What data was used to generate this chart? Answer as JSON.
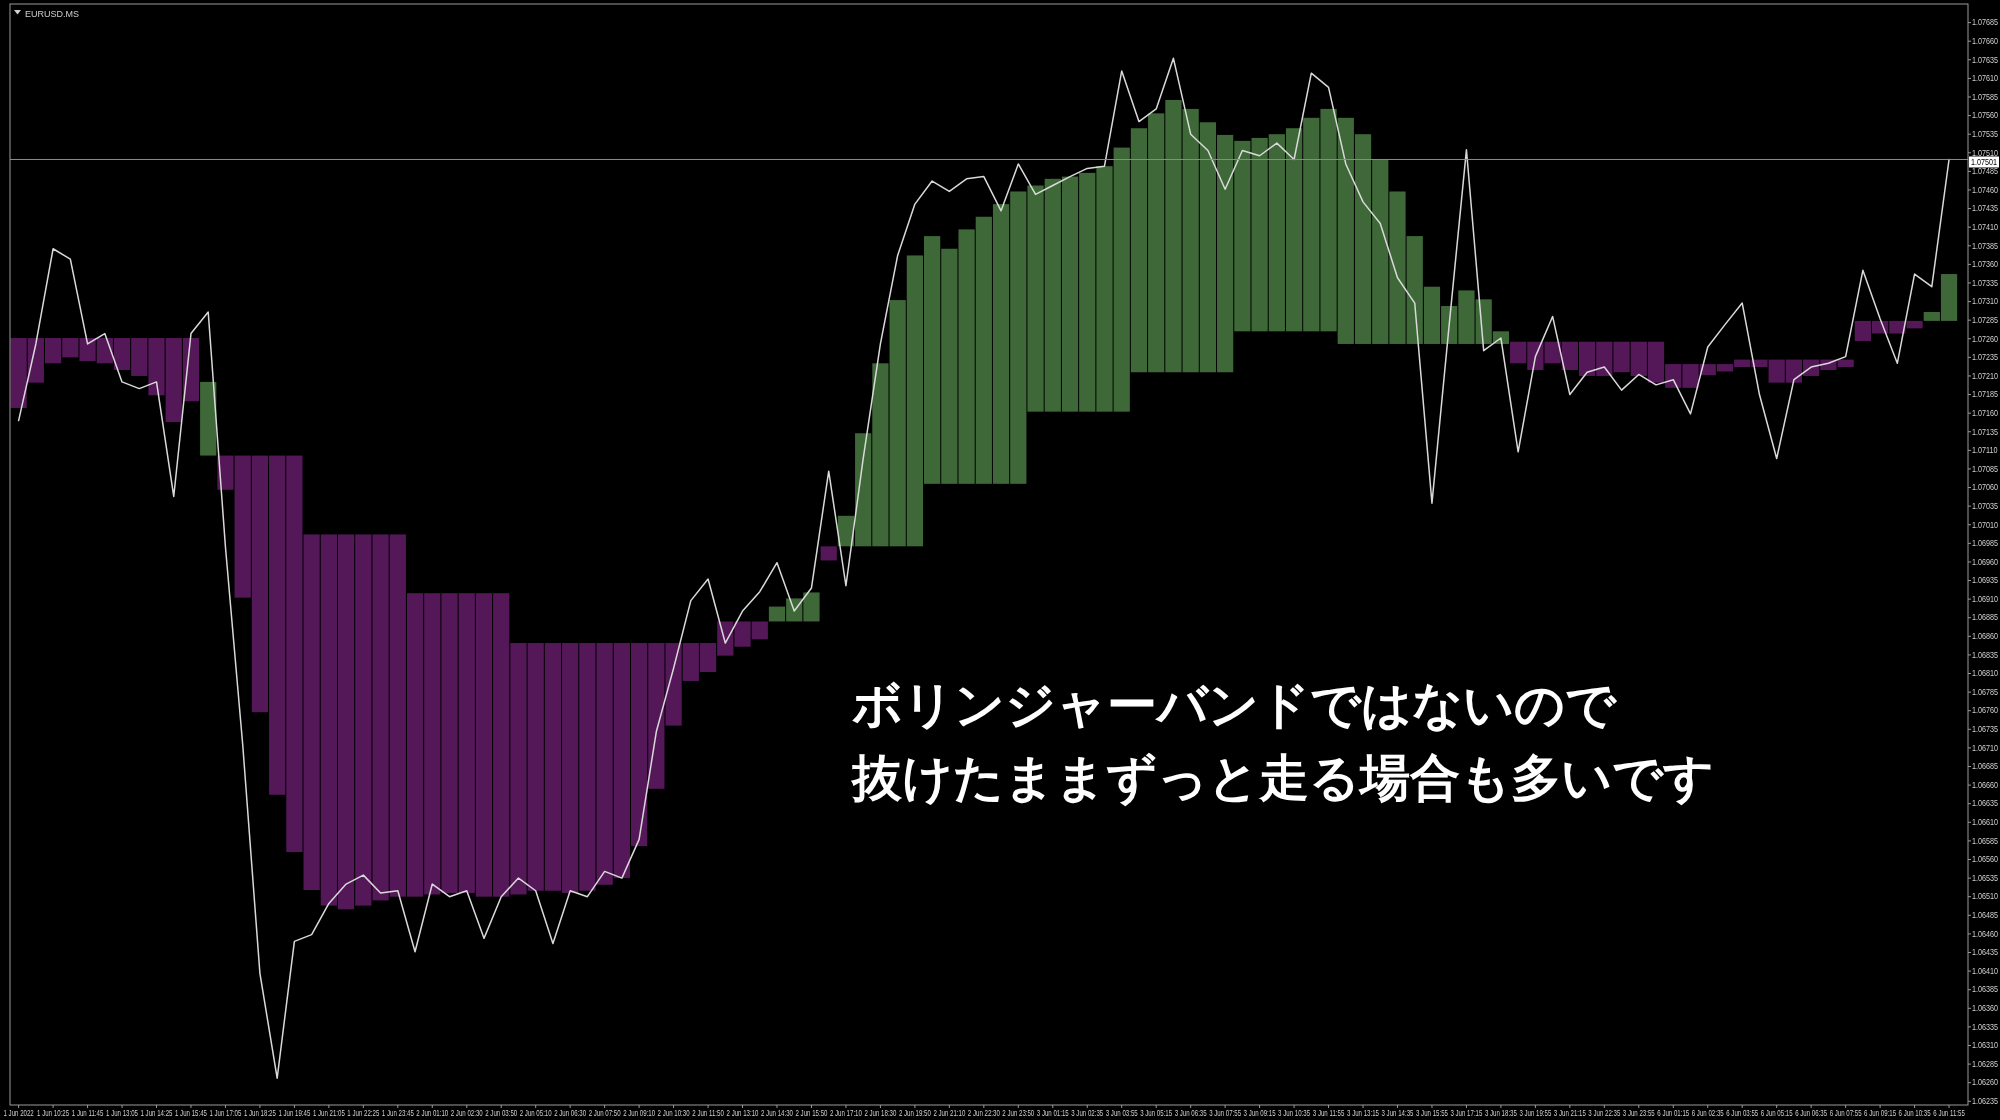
{
  "chart_data": {
    "type": "line",
    "title": "EURUSD.MS",
    "annotations": [
      "ボリンジャーバンドではないので",
      "抜けたままずっと走る場合も多いです"
    ],
    "categories": [
      "1 Jun 2022",
      null,
      "1 Jun 10:25",
      null,
      "1 Jun 11:45",
      null,
      "1 Jun 13:05",
      null,
      "1 Jun 14:25",
      null,
      "1 Jun 15:45",
      null,
      "1 Jun 17:05",
      null,
      "1 Jun 18:25",
      null,
      "1 Jun 19:45",
      null,
      "1 Jun 21:05",
      null,
      "1 Jun 22:25",
      null,
      "1 Jun 23:45",
      null,
      "2 Jun 01:10",
      null,
      "2 Jun 02:30",
      null,
      "2 Jun 03:50",
      null,
      "2 Jun 05:10",
      null,
      "2 Jun 06:30",
      null,
      "2 Jun 07:50",
      null,
      "2 Jun 09:10",
      null,
      "2 Jun 10:30",
      null,
      "2 Jun 11:50",
      null,
      "2 Jun 13:10",
      null,
      "2 Jun 14:30",
      null,
      "2 Jun 15:50",
      null,
      "2 Jun 17:10",
      null,
      "2 Jun 18:30",
      null,
      "2 Jun 19:50",
      null,
      "2 Jun 21:10",
      null,
      "2 Jun 22:30",
      null,
      "2 Jun 23:50",
      null,
      "3 Jun 01:15",
      null,
      "3 Jun 02:35",
      null,
      "3 Jun 03:55",
      null,
      "3 Jun 05:15",
      null,
      "3 Jun 06:35",
      null,
      "3 Jun 07:55",
      null,
      "3 Jun 09:15",
      null,
      "3 Jun 10:35",
      null,
      "3 Jun 11:55",
      null,
      "3 Jun 13:15",
      null,
      "3 Jun 14:35",
      null,
      "3 Jun 15:55",
      null,
      "3 Jun 17:15",
      null,
      "3 Jun 18:35",
      null,
      "3 Jun 19:55",
      null,
      "3 Jun 21:15",
      null,
      "3 Jun 22:35",
      null,
      "3 Jun 23:55",
      null,
      "6 Jun 01:15",
      null,
      "6 Jun 02:35",
      null,
      "6 Jun 03:55",
      null,
      "6 Jun 05:15",
      null,
      "6 Jun 06:35",
      null,
      "6 Jun 07:55",
      null,
      "6 Jun 09:15",
      null,
      "6 Jun 10:35",
      null,
      "6 Jun 11:55"
    ],
    "ylim": [
      1.0623,
      1.0771
    ],
    "yticks": [
      1.07685,
      {
        "value": 1.0766,
        "label": "1.07660"
      },
      1.07635,
      {
        "value": 1.0761,
        "label": "1.07610"
      },
      1.07585,
      {
        "value": 1.0756,
        "label": "1.07560"
      },
      1.07535,
      {
        "value": 1.0751,
        "label": "1.07510"
      },
      1.07485,
      {
        "value": 1.0746,
        "label": "1.07460"
      },
      1.07435,
      {
        "value": 1.0741,
        "label": "1.07410"
      },
      1.07385,
      {
        "value": 1.0736,
        "label": "1.07360"
      },
      1.07335,
      {
        "value": 1.0731,
        "label": "1.07310"
      },
      1.07285,
      {
        "value": 1.0726,
        "label": "1.07260"
      },
      1.07235,
      {
        "value": 1.0721,
        "label": "1.07210"
      },
      1.07185,
      {
        "value": 1.0716,
        "label": "1.07160"
      },
      1.07135,
      {
        "value": 1.0711,
        "label": "1.07110"
      },
      1.07085,
      {
        "value": 1.0706,
        "label": "1.07060"
      },
      1.07035,
      {
        "value": 1.0701,
        "label": "1.07010"
      },
      1.06985,
      {
        "value": 1.0696,
        "label": "1.06960"
      },
      1.06935,
      {
        "value": 1.0691,
        "label": "1.06910"
      },
      1.06885,
      {
        "value": 1.0686,
        "label": "1.06860"
      },
      1.06835,
      {
        "value": 1.0681,
        "label": "1.06810"
      },
      1.06785,
      {
        "value": 1.0676,
        "label": "1.06760"
      },
      1.06735,
      {
        "value": 1.0671,
        "label": "1.06710"
      },
      1.06685,
      {
        "value": 1.0666,
        "label": "1.06660"
      },
      1.06635,
      {
        "value": 1.0661,
        "label": "1.06610"
      },
      1.06585,
      {
        "value": 1.0656,
        "label": "1.06560"
      },
      1.06535,
      {
        "value": 1.0651,
        "label": "1.06510"
      },
      1.06485,
      {
        "value": 1.0646,
        "label": "1.06460"
      },
      1.06435,
      {
        "value": 1.0641,
        "label": "1.06410"
      },
      1.06385,
      {
        "value": 1.0636,
        "label": "1.06360"
      },
      1.06335,
      {
        "value": 1.0631,
        "label": "1.06310"
      },
      1.06285,
      {
        "value": 1.0626,
        "label": "1.06260"
      },
      1.06235
    ],
    "ref_lines": [
      {
        "axis": "y",
        "value": 1.07501,
        "label": "1.07501",
        "color": "#8c8c8c"
      }
    ],
    "line_style": "solid",
    "series": [
      {
        "type": "bar",
        "base": [
          1.07261,
          1.07261,
          1.07261,
          1.07261,
          1.07261,
          1.07261,
          1.07261,
          1.07261,
          1.07261,
          1.07261,
          1.07261,
          1.07103,
          1.07103,
          1.07103,
          1.07103,
          1.07103,
          1.07103,
          1.06997,
          1.06997,
          1.06997,
          1.06997,
          1.06997,
          1.06997,
          1.06918,
          1.06918,
          1.06918,
          1.06918,
          1.06918,
          1.06918,
          1.06851,
          1.06851,
          1.06851,
          1.06851,
          1.06851,
          1.06851,
          1.06851,
          1.06851,
          1.06851,
          1.06851,
          1.06851,
          1.06851,
          1.0688,
          1.0688,
          1.0688,
          1.0688,
          1.0688,
          1.0688,
          1.06981,
          1.06981,
          1.06981,
          1.06981,
          1.06981,
          1.06981,
          1.07065,
          1.07065,
          1.07065,
          1.07065,
          1.07065,
          1.07065,
          1.07162,
          1.07162,
          1.07162,
          1.07162,
          1.07162,
          1.07162,
          1.07215,
          1.07215,
          1.07215,
          1.07215,
          1.07215,
          1.07215,
          1.0727,
          1.0727,
          1.0727,
          1.0727,
          1.0727,
          1.0727,
          1.07253,
          1.07253,
          1.07253,
          1.07253,
          1.07253,
          1.07253,
          1.07253,
          1.07253,
          1.07253,
          1.07253,
          1.07256,
          1.07256,
          1.07256,
          1.07256,
          1.07256,
          1.07256,
          1.07256,
          1.07256,
          1.07256,
          1.07226,
          1.07226,
          1.07226,
          1.07226,
          1.07232,
          1.07232,
          1.07232,
          1.07232,
          1.07232,
          1.07232,
          1.07232,
          1.07284,
          1.07284,
          1.07284,
          1.07284,
          1.07284,
          1.07284
        ],
        "values": [
          -0.00094,
          -0.0006,
          -0.00034,
          -0.00026,
          -0.00031,
          -0.00034,
          -0.00043,
          -0.00051,
          -0.00077,
          -0.00113,
          -0.00085,
          0.00099,
          -0.00046,
          -0.00191,
          -0.00345,
          -0.00456,
          -0.00533,
          -0.00478,
          -0.00499,
          -0.00504,
          -0.00499,
          -0.00492,
          -0.00487,
          -0.00408,
          -0.00405,
          -0.00403,
          -0.00403,
          -0.00408,
          -0.00408,
          -0.00338,
          -0.00333,
          -0.00333,
          -0.00336,
          -0.00333,
          -0.00325,
          -0.00316,
          -0.00273,
          -0.00196,
          -0.00111,
          -0.00051,
          -0.00039,
          -0.00046,
          -0.00034,
          -0.00024,
          0.0002,
          0.00031,
          0.00039,
          -0.00019,
          0.00041,
          0.00152,
          0.00246,
          0.00331,
          0.00391,
          0.00333,
          0.00316,
          0.00342,
          0.00359,
          0.00376,
          0.00393,
          0.00304,
          0.00313,
          0.00316,
          0.00321,
          0.0033,
          0.00355,
          0.00328,
          0.00348,
          0.00366,
          0.00354,
          0.00336,
          0.00319,
          0.00256,
          0.0026,
          0.00265,
          0.00273,
          0.00287,
          0.00299,
          0.00304,
          0.00282,
          0.00248,
          0.00205,
          0.00145,
          0.00077,
          0.00051,
          0.00072,
          0.0006,
          0.00017,
          -0.00029,
          -0.00038,
          -0.00029,
          -0.00038,
          -0.00046,
          -0.00046,
          -0.00041,
          -0.00046,
          -0.00055,
          -0.00032,
          -0.00032,
          -0.00015,
          -0.0001,
          -0.0001,
          -0.0001,
          -0.00031,
          -0.00031,
          -0.00022,
          -0.00014,
          -0.0001,
          -0.00027,
          -0.00017,
          -0.00017,
          -0.0001,
          0.00012,
          0.00063
        ],
        "colors": [
          "#541758",
          "#541758",
          "#541758",
          "#541758",
          "#541758",
          "#541758",
          "#541758",
          "#541758",
          "#541758",
          "#541758",
          "#541758",
          "#3e6838",
          "#541758",
          "#541758",
          "#541758",
          "#541758",
          "#541758",
          "#541758",
          "#541758",
          "#541758",
          "#541758",
          "#541758",
          "#541758",
          "#541758",
          "#541758",
          "#541758",
          "#541758",
          "#541758",
          "#541758",
          "#541758",
          "#541758",
          "#541758",
          "#541758",
          "#541758",
          "#541758",
          "#541758",
          "#541758",
          "#541758",
          "#541758",
          "#541758",
          "#541758",
          "#541758",
          "#541758",
          "#541758",
          "#3e6838",
          "#3e6838",
          "#3e6838",
          "#541758",
          "#3e6838",
          "#3e6838",
          "#3e6838",
          "#3e6838",
          "#3e6838",
          "#3e6838",
          "#3e6838",
          "#3e6838",
          "#3e6838",
          "#3e6838",
          "#3e6838",
          "#3e6838",
          "#3e6838",
          "#3e6838",
          "#3e6838",
          "#3e6838",
          "#3e6838",
          "#3e6838",
          "#3e6838",
          "#3e6838",
          "#3e6838",
          "#3e6838",
          "#3e6838",
          "#3e6838",
          "#3e6838",
          "#3e6838",
          "#3e6838",
          "#3e6838",
          "#3e6838",
          "#3e6838",
          "#3e6838",
          "#3e6838",
          "#3e6838",
          "#3e6838",
          "#3e6838",
          "#3e6838",
          "#3e6838",
          "#3e6838",
          "#3e6838",
          "#541758",
          "#541758",
          "#541758",
          "#541758",
          "#541758",
          "#541758",
          "#541758",
          "#541758",
          "#541758",
          "#541758",
          "#541758",
          "#541758",
          "#541758",
          "#541758",
          "#541758",
          "#541758",
          "#541758",
          "#541758",
          "#541758",
          "#541758",
          "#541758",
          "#541758",
          "#541758",
          "#541758",
          "#3e6838",
          "#3e6838"
        ]
      },
      {
        "color": "#d9d9d9",
        "values": [
          1.0715,
          1.07253,
          1.07381,
          1.07367,
          1.07253,
          1.07267,
          1.07202,
          1.07193,
          1.07202,
          1.07048,
          1.07267,
          1.07296,
          1.0698,
          1.06715,
          1.06407,
          1.06266,
          1.0645,
          1.06459,
          1.06501,
          1.06527,
          1.06539,
          1.06515,
          1.06518,
          1.06436,
          1.06527,
          1.0651,
          1.06518,
          1.06454,
          1.0651,
          1.06535,
          1.06518,
          1.06447,
          1.06518,
          1.0651,
          1.06544,
          1.06535,
          1.06587,
          1.06732,
          1.06817,
          1.06908,
          1.06937,
          1.06851,
          1.06894,
          1.0692,
          1.06959,
          1.06894,
          1.06925,
          1.07082,
          1.06928,
          1.07099,
          1.07253,
          1.07372,
          1.07441,
          1.07472,
          1.07458,
          1.07475,
          1.07478,
          1.07432,
          1.07495,
          1.07454,
          1.07466,
          1.07478,
          1.07489,
          1.07492,
          1.0762,
          1.07552,
          1.07569,
          1.07637,
          1.07535,
          1.07513,
          1.07461,
          1.07513,
          1.07506,
          1.07523,
          1.07501,
          1.07617,
          1.07598,
          1.07495,
          1.07444,
          1.07415,
          1.07342,
          1.07308,
          1.07039,
          1.07279,
          1.07514,
          1.07244,
          1.07261,
          1.07108,
          1.07236,
          1.0729,
          1.07185,
          1.07215,
          1.07222,
          1.07191,
          1.07212,
          1.07198,
          1.07205,
          1.07159,
          1.07249,
          1.07279,
          1.07308,
          1.07185,
          1.07099,
          1.07205,
          1.07222,
          1.07227,
          1.07236,
          1.07352,
          1.07287,
          1.07227,
          1.07347,
          1.0733,
          1.07501
        ]
      }
    ]
  }
}
